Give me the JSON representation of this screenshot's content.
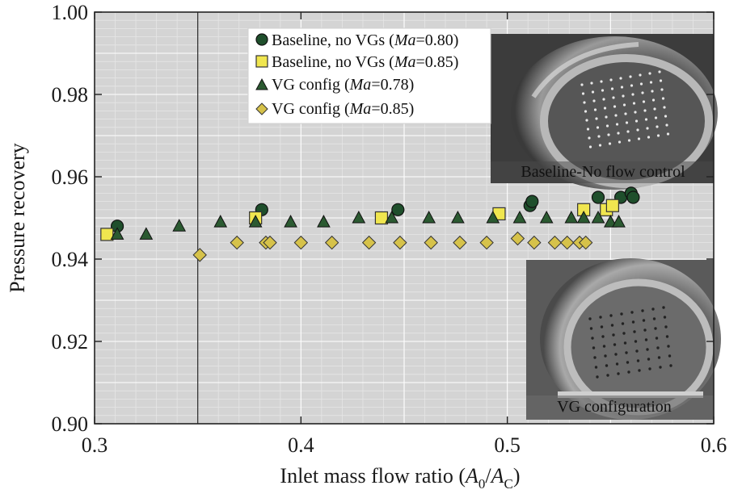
{
  "chart_data": {
    "type": "scatter",
    "xlabel_prefix": "Inlet mass flow ratio (",
    "xlabel_a0": "A",
    "xlabel_a0_sub": "0",
    "xlabel_slash": "/",
    "xlabel_ac": "A",
    "xlabel_ac_sub": "C",
    "xlabel_suffix": ")",
    "ylabel": "Pressure recovery",
    "xlim": [
      0.3,
      0.6
    ],
    "ylim": [
      0.9,
      1.0
    ],
    "xticks": [
      "0.3",
      "0.4",
      "0.5",
      "0.6"
    ],
    "yticks": [
      "0.90",
      "0.92",
      "0.94",
      "0.96",
      "0.98",
      "1.00"
    ],
    "legend_position": "top-center",
    "series": [
      {
        "name_main": "Baseline, no VGs (",
        "name_italic": "Ma",
        "name_tail": "=0.80)",
        "marker": "circle",
        "color": "#1f4f2c",
        "points": [
          {
            "x": 0.311,
            "y": 0.948
          },
          {
            "x": 0.381,
            "y": 0.952
          },
          {
            "x": 0.447,
            "y": 0.952
          },
          {
            "x": 0.511,
            "y": 0.953
          },
          {
            "x": 0.512,
            "y": 0.954
          },
          {
            "x": 0.544,
            "y": 0.955
          },
          {
            "x": 0.555,
            "y": 0.955
          },
          {
            "x": 0.56,
            "y": 0.956
          },
          {
            "x": 0.561,
            "y": 0.955
          }
        ]
      },
      {
        "name_main": "Baseline, no VGs (",
        "name_italic": "Ma",
        "name_tail": "=0.85)",
        "marker": "square",
        "color": "#f0e64f",
        "points": [
          {
            "x": 0.306,
            "y": 0.946
          },
          {
            "x": 0.378,
            "y": 0.95
          },
          {
            "x": 0.439,
            "y": 0.95
          },
          {
            "x": 0.496,
            "y": 0.951
          },
          {
            "x": 0.537,
            "y": 0.952
          },
          {
            "x": 0.548,
            "y": 0.952
          },
          {
            "x": 0.551,
            "y": 0.953
          }
        ]
      },
      {
        "name_main": "VG config (",
        "name_italic": "Ma",
        "name_tail": "=0.78)",
        "marker": "triangle",
        "color": "#2b5a31",
        "points": [
          {
            "x": 0.311,
            "y": 0.946
          },
          {
            "x": 0.325,
            "y": 0.946
          },
          {
            "x": 0.341,
            "y": 0.948
          },
          {
            "x": 0.361,
            "y": 0.949
          },
          {
            "x": 0.378,
            "y": 0.949
          },
          {
            "x": 0.395,
            "y": 0.949
          },
          {
            "x": 0.411,
            "y": 0.949
          },
          {
            "x": 0.428,
            "y": 0.95
          },
          {
            "x": 0.444,
            "y": 0.95
          },
          {
            "x": 0.462,
            "y": 0.95
          },
          {
            "x": 0.476,
            "y": 0.95
          },
          {
            "x": 0.493,
            "y": 0.95
          },
          {
            "x": 0.506,
            "y": 0.95
          },
          {
            "x": 0.519,
            "y": 0.95
          },
          {
            "x": 0.531,
            "y": 0.95
          },
          {
            "x": 0.537,
            "y": 0.95
          },
          {
            "x": 0.544,
            "y": 0.95
          },
          {
            "x": 0.55,
            "y": 0.949
          },
          {
            "x": 0.554,
            "y": 0.949
          }
        ]
      },
      {
        "name_main": "VG config (",
        "name_italic": "Ma",
        "name_tail": "=0.85)",
        "marker": "diamond",
        "color": "#d6c24a",
        "points": [
          {
            "x": 0.351,
            "y": 0.941
          },
          {
            "x": 0.369,
            "y": 0.944
          },
          {
            "x": 0.383,
            "y": 0.944
          },
          {
            "x": 0.385,
            "y": 0.944
          },
          {
            "x": 0.4,
            "y": 0.944
          },
          {
            "x": 0.415,
            "y": 0.944
          },
          {
            "x": 0.433,
            "y": 0.944
          },
          {
            "x": 0.448,
            "y": 0.944
          },
          {
            "x": 0.463,
            "y": 0.944
          },
          {
            "x": 0.477,
            "y": 0.944
          },
          {
            "x": 0.49,
            "y": 0.944
          },
          {
            "x": 0.505,
            "y": 0.945
          },
          {
            "x": 0.513,
            "y": 0.944
          },
          {
            "x": 0.523,
            "y": 0.944
          },
          {
            "x": 0.529,
            "y": 0.944
          },
          {
            "x": 0.535,
            "y": 0.944
          },
          {
            "x": 0.538,
            "y": 0.944
          }
        ]
      }
    ],
    "insets": [
      {
        "caption": "Baseline-No flow control"
      },
      {
        "caption": "VG configuration"
      }
    ]
  }
}
